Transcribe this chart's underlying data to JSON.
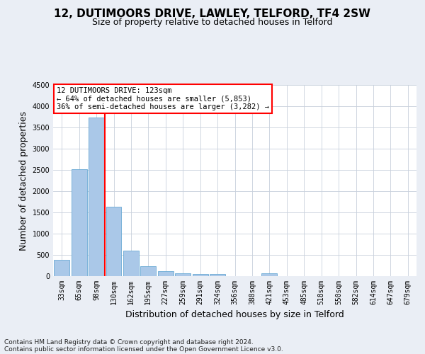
{
  "title": "12, DUTIMOORS DRIVE, LAWLEY, TELFORD, TF4 2SW",
  "subtitle": "Size of property relative to detached houses in Telford",
  "xlabel": "Distribution of detached houses by size in Telford",
  "ylabel": "Number of detached properties",
  "categories": [
    "33sqm",
    "65sqm",
    "98sqm",
    "130sqm",
    "162sqm",
    "195sqm",
    "227sqm",
    "259sqm",
    "291sqm",
    "324sqm",
    "356sqm",
    "388sqm",
    "421sqm",
    "453sqm",
    "485sqm",
    "518sqm",
    "550sqm",
    "582sqm",
    "614sqm",
    "647sqm",
    "679sqm"
  ],
  "values": [
    380,
    2510,
    3730,
    1640,
    600,
    240,
    110,
    65,
    50,
    50,
    0,
    0,
    65,
    0,
    0,
    0,
    0,
    0,
    0,
    0,
    0
  ],
  "bar_color": "#aac8e8",
  "bar_edge_color": "#6aaad4",
  "vline_color": "red",
  "annotation_text": "12 DUTIMOORS DRIVE: 123sqm\n← 64% of detached houses are smaller (5,853)\n36% of semi-detached houses are larger (3,282) →",
  "annotation_box_color": "white",
  "annotation_box_edge_color": "red",
  "ylim": [
    0,
    4500
  ],
  "yticks": [
    0,
    500,
    1000,
    1500,
    2000,
    2500,
    3000,
    3500,
    4000,
    4500
  ],
  "bg_color": "#eaeef5",
  "plot_bg_color": "white",
  "grid_color": "#c8d0dc",
  "footer_line1": "Contains HM Land Registry data © Crown copyright and database right 2024.",
  "footer_line2": "Contains public sector information licensed under the Open Government Licence v3.0.",
  "title_fontsize": 11,
  "subtitle_fontsize": 9,
  "tick_fontsize": 7,
  "ylabel_fontsize": 9,
  "xlabel_fontsize": 9,
  "annot_fontsize": 7.5
}
